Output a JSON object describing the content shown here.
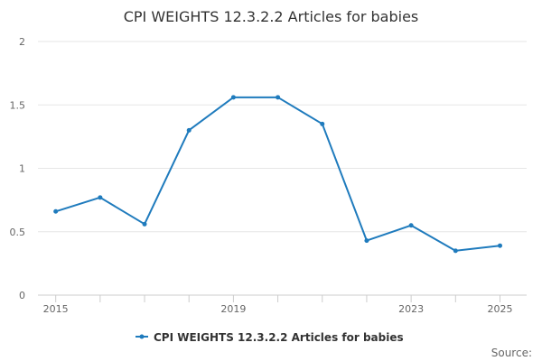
{
  "chart_data": {
    "type": "line",
    "title": "CPI WEIGHTS 12.3.2.2 Articles for babies",
    "xlabel": "",
    "ylabel": "",
    "x": [
      2015,
      2016,
      2017,
      2018,
      2019,
      2020,
      2021,
      2022,
      2023,
      2024,
      2025
    ],
    "series": [
      {
        "name": "CPI WEIGHTS 12.3.2.2 Articles for babies",
        "values": [
          0.66,
          0.77,
          0.56,
          1.3,
          1.56,
          1.56,
          1.35,
          0.43,
          0.55,
          0.35,
          0.39
        ],
        "color": "#1f7bbd"
      }
    ],
    "xticks": [
      "2015",
      "2019",
      "2023",
      "2025"
    ],
    "yticks": [
      "0",
      "0.5",
      "1",
      "1.5",
      "2"
    ],
    "ylim": [
      0,
      2
    ],
    "xlim": [
      2015,
      2025
    ],
    "grid": true,
    "legend_position": "bottom-center",
    "credit": "Source:"
  }
}
